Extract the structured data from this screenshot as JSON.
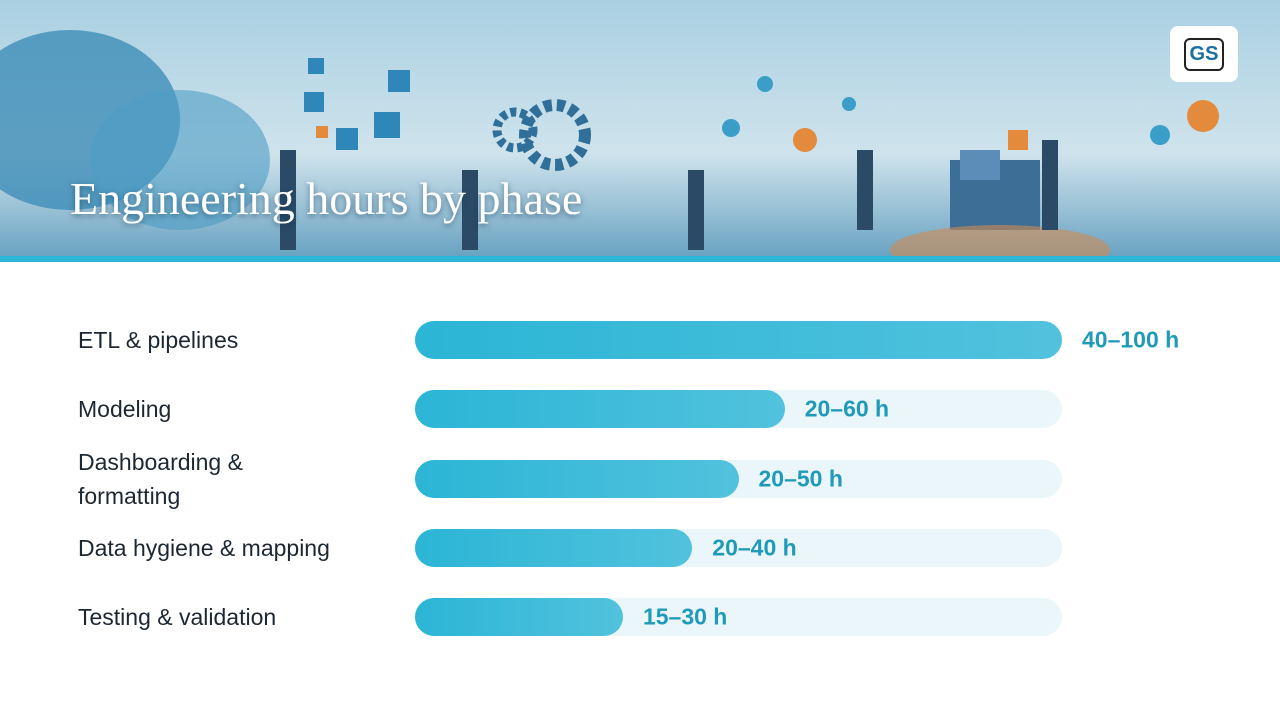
{
  "header": {
    "title": "Engineering hours by phase",
    "logo": "GS"
  },
  "chart_data": {
    "type": "bar",
    "orientation": "horizontal",
    "categories": [
      "ETL & pipelines",
      "Modeling",
      "Dashboarding & formatting",
      "Data hygiene & mapping",
      "Testing & validation"
    ],
    "values": [
      [
        40,
        100
      ],
      [
        20,
        60
      ],
      [
        20,
        50
      ],
      [
        20,
        40
      ],
      [
        15,
        30
      ]
    ],
    "value_labels": [
      "40–100 h",
      "20–60 h",
      "20–50 h",
      "20–40 h",
      "15–30 h"
    ],
    "xlim": [
      0,
      70
    ],
    "color": "#2bb5d6",
    "track_color": "#eaf6f9",
    "label_color": "#1f9ab8"
  }
}
